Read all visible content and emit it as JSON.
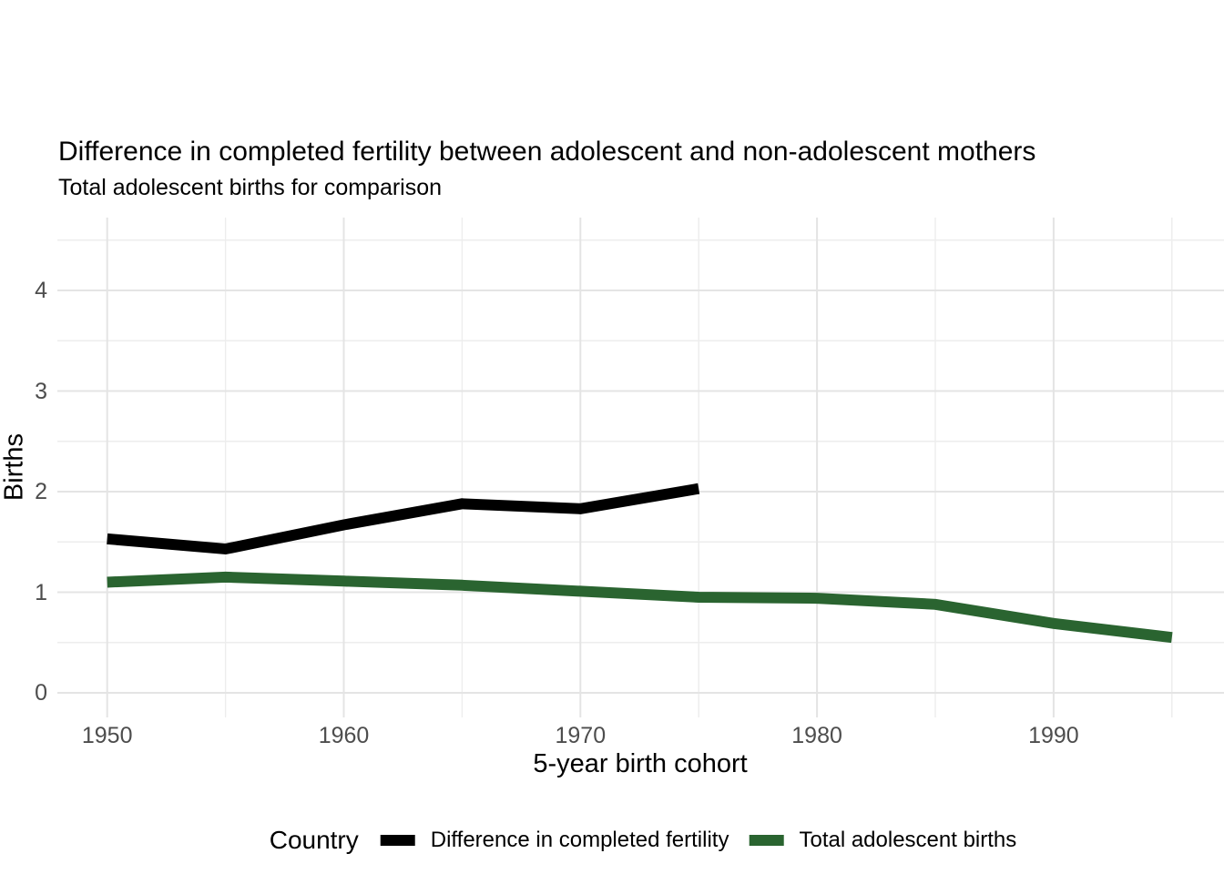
{
  "title": "Difference in completed fertility between adolescent and non-adolescent mothers",
  "subtitle": "Total adolescent births for comparison",
  "chart_data": {
    "type": "line",
    "title": "Difference in completed fertility between adolescent and non-adolescent mothers",
    "subtitle": "Total adolescent births for comparison",
    "xlabel": "5-year birth cohort",
    "ylabel": "Births",
    "legend_title": "Country",
    "legend_position": "bottom",
    "grid": "major and minor, light grey, no axis lines (minimal theme)",
    "x_ticks": [
      1950,
      1960,
      1970,
      1980,
      1990
    ],
    "y_ticks": [
      0,
      1,
      2,
      3,
      4
    ],
    "xlim": [
      1948,
      1997
    ],
    "ylim": [
      -0.25,
      4.7
    ],
    "minor_x_step": 5,
    "minor_y_step": 0.5,
    "series": [
      {
        "name": "Difference in completed fertility",
        "color": "#000000",
        "x": [
          1950,
          1955,
          1960,
          1965,
          1970,
          1975
        ],
        "values": [
          1.53,
          1.43,
          1.67,
          1.88,
          1.83,
          2.03
        ]
      },
      {
        "name": "Total adolescent births",
        "color": "#2A6430",
        "x": [
          1950,
          1955,
          1960,
          1965,
          1970,
          1975,
          1980,
          1985,
          1990,
          1995
        ],
        "values": [
          1.1,
          1.15,
          1.11,
          1.07,
          1.01,
          0.95,
          0.94,
          0.88,
          0.69,
          0.55
        ]
      }
    ]
  },
  "colors": {
    "background": "#FFFFFF",
    "grid_major": "#E4E4E4",
    "grid_minor": "#EDEDED",
    "tick_text": "#4D4D4D",
    "text": "#000000",
    "series_black": "#000000",
    "series_green": "#2A6430"
  }
}
